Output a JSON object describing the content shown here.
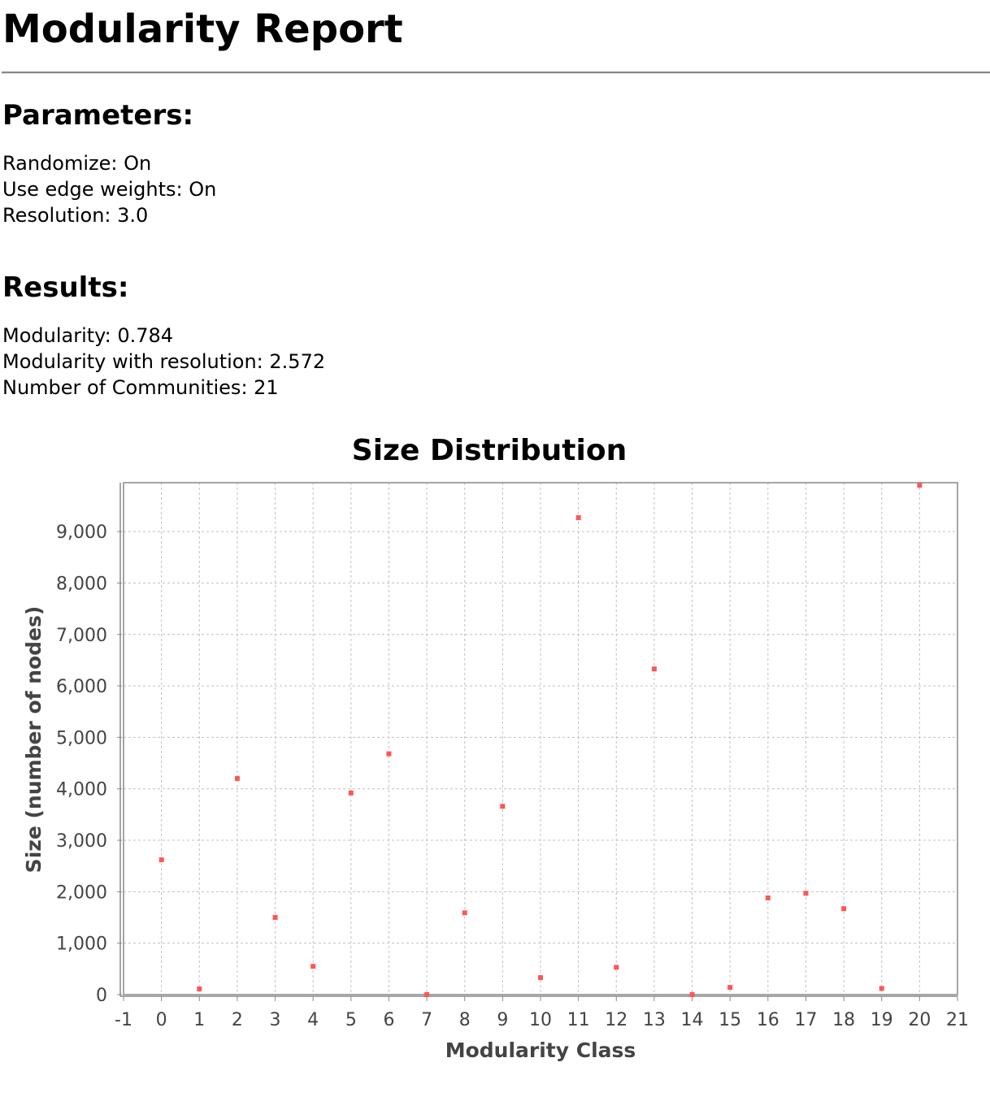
{
  "report": {
    "title": "Modularity Report"
  },
  "parameters": {
    "heading": "Parameters:",
    "randomize": "Randomize: On",
    "edge_weights": "Use edge weights: On",
    "resolution": "Resolution: 3.0"
  },
  "results": {
    "heading": "Results:",
    "modularity": "Modularity: 0.784",
    "modularity_resolution": "Modularity with resolution: 2.572",
    "communities": "Number of Communities: 21"
  },
  "chart_data": {
    "type": "scatter",
    "title": "Size Distribution",
    "xlabel": "Modularity Class",
    "ylabel": "Size (number of nodes)",
    "xlim": [
      -1,
      21
    ],
    "ylim": [
      0,
      9950
    ],
    "x_ticks": [
      "-1",
      "0",
      "1",
      "2",
      "3",
      "4",
      "5",
      "6",
      "7",
      "8",
      "9",
      "10",
      "11",
      "12",
      "13",
      "14",
      "15",
      "16",
      "17",
      "18",
      "19",
      "20",
      "21"
    ],
    "y_ticks": [
      "0",
      "1,000",
      "2,000",
      "3,000",
      "4,000",
      "5,000",
      "6,000",
      "7,000",
      "8,000",
      "9,000"
    ],
    "grid": true,
    "point_color": "#ff5555",
    "points": [
      {
        "x": 0,
        "y": 2620
      },
      {
        "x": 1,
        "y": 110
      },
      {
        "x": 2,
        "y": 4200
      },
      {
        "x": 3,
        "y": 1500
      },
      {
        "x": 4,
        "y": 550
      },
      {
        "x": 5,
        "y": 3920
      },
      {
        "x": 6,
        "y": 4680
      },
      {
        "x": 7,
        "y": 0
      },
      {
        "x": 8,
        "y": 1590
      },
      {
        "x": 9,
        "y": 3660
      },
      {
        "x": 10,
        "y": 330
      },
      {
        "x": 11,
        "y": 9270
      },
      {
        "x": 12,
        "y": 530
      },
      {
        "x": 13,
        "y": 6330
      },
      {
        "x": 14,
        "y": 0
      },
      {
        "x": 15,
        "y": 140
      },
      {
        "x": 16,
        "y": 1880
      },
      {
        "x": 17,
        "y": 1970
      },
      {
        "x": 18,
        "y": 1670
      },
      {
        "x": 19,
        "y": 120
      },
      {
        "x": 20,
        "y": 9900
      }
    ]
  }
}
